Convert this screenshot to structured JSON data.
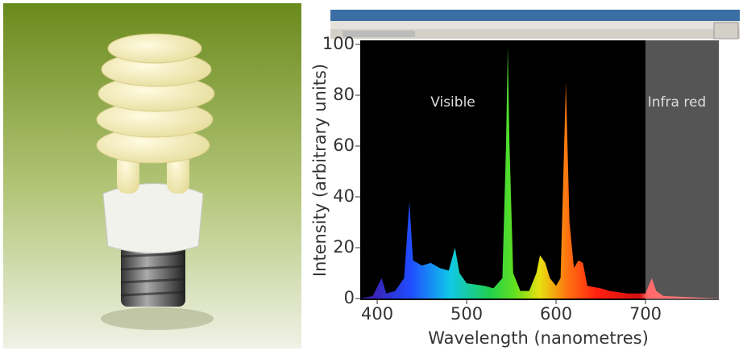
{
  "chart_data": {
    "type": "area",
    "x_label": "Wavelength (nanometres)",
    "y_label": "Intensity (arbitrary units)",
    "annotations": [
      "Visible",
      "Infra red"
    ],
    "shade_from": 700,
    "x": [
      381,
      395,
      405,
      410,
      420,
      430,
      436,
      440,
      450,
      460,
      470,
      480,
      487,
      492,
      500,
      520,
      530,
      540,
      544,
      546,
      548,
      552,
      560,
      570,
      578,
      582,
      588,
      593,
      600,
      605,
      611,
      615,
      620,
      625,
      630,
      635,
      650,
      660,
      680,
      700,
      707,
      712,
      720,
      782
    ],
    "values": [
      0,
      1,
      8,
      2,
      3,
      8,
      38,
      15,
      13,
      14,
      12,
      11,
      20,
      10,
      6,
      5,
      4,
      8,
      60,
      99,
      60,
      10,
      3,
      3,
      10,
      17,
      14,
      8,
      5,
      8,
      85,
      30,
      12,
      15,
      14,
      5,
      4,
      3,
      2,
      2,
      8,
      3,
      1,
      0
    ],
    "xlim": [
      381,
      782
    ],
    "ylim": [
      0,
      100
    ],
    "xticks": [
      400,
      500,
      600,
      700
    ],
    "yticks": [
      0,
      20,
      40,
      60,
      80,
      100
    ]
  }
}
